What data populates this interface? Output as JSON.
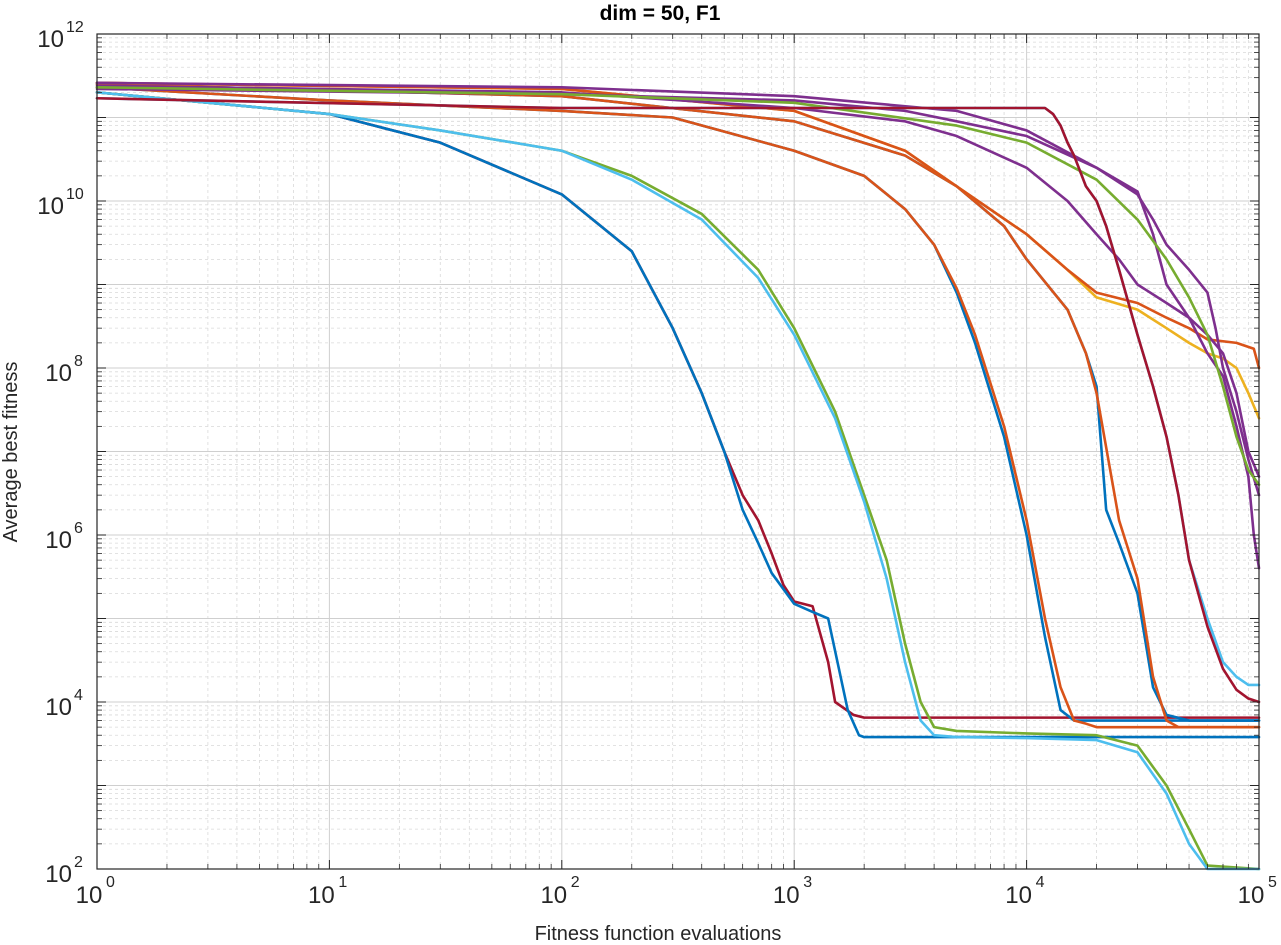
{
  "chart_data": {
    "type": "line",
    "title": "dim = 50,  F1",
    "xlabel": "Fitness function evaluations",
    "ylabel": "Average best fitness",
    "xscale": "log",
    "yscale": "log",
    "xlim": [
      1,
      100000
    ],
    "ylim": [
      100,
      1000000000000
    ],
    "grid": true,
    "minor_grid": true,
    "x_ticks": [
      {
        "base": "10",
        "exp": "0",
        "value": 1
      },
      {
        "base": "10",
        "exp": "1",
        "value": 10
      },
      {
        "base": "10",
        "exp": "2",
        "value": 100
      },
      {
        "base": "10",
        "exp": "3",
        "value": 1000
      },
      {
        "base": "10",
        "exp": "4",
        "value": 10000
      },
      {
        "base": "10",
        "exp": "5",
        "value": 100000
      }
    ],
    "y_ticks": [
      {
        "base": "10",
        "exp": "2",
        "value": 100
      },
      {
        "base": "10",
        "exp": "4",
        "value": 10000
      },
      {
        "base": "10",
        "exp": "6",
        "value": 1000000
      },
      {
        "base": "10",
        "exp": "8",
        "value": 100000000
      },
      {
        "base": "10",
        "exp": "10",
        "value": 10000000000
      },
      {
        "base": "10",
        "exp": "12",
        "value": 1000000000000
      }
    ],
    "series": [
      {
        "color": "#A2142F",
        "x": [
          1,
          10,
          30,
          100,
          200,
          300,
          400,
          500,
          600,
          700,
          800,
          900,
          1000,
          1200,
          1400,
          1500,
          1800,
          2000,
          10000,
          100000
        ],
        "y": [
          200000000000.0,
          110000000000.0,
          50000000000.0,
          12000000000.0,
          2500000000.0,
          300000000.0,
          50000000.0,
          10000000.0,
          3000000.0,
          1500000.0,
          600000.0,
          250000.0,
          160000.0,
          140000.0,
          30000.0,
          10000.0,
          7000,
          6500,
          6500,
          6500
        ]
      },
      {
        "color": "#0072BD",
        "x": [
          1,
          10,
          30,
          100,
          200,
          300,
          400,
          500,
          600,
          700,
          800,
          1000,
          1200,
          1400,
          1700,
          1900,
          2000,
          10000,
          100000
        ],
        "y": [
          200000000000.0,
          110000000000.0,
          50000000000.0,
          12000000000.0,
          2500000000.0,
          300000000.0,
          50000000.0,
          10000000.0,
          2000000.0,
          800000.0,
          350000.0,
          150000.0,
          120000.0,
          100000.0,
          8000,
          4000,
          3800,
          3800,
          3800
        ]
      },
      {
        "color": "#77AC30",
        "x": [
          1,
          10,
          30,
          100,
          200,
          400,
          700,
          1000,
          1500,
          2000,
          2500,
          3000,
          3500,
          4000,
          5000,
          10000,
          20000,
          30000,
          40000,
          50000,
          60000,
          100000
        ],
        "y": [
          200000000000.0,
          110000000000.0,
          70000000000.0,
          40000000000.0,
          20000000000.0,
          7000000000.0,
          1500000000.0,
          300000000.0,
          30000000.0,
          3000000.0,
          500000.0,
          50000.0,
          10000.0,
          5000,
          4500,
          4200,
          4000,
          3000,
          1000,
          300,
          110,
          100
        ]
      },
      {
        "color": "#4DBEEE",
        "x": [
          1,
          10,
          30,
          100,
          200,
          400,
          700,
          1000,
          1500,
          2000,
          2500,
          3000,
          3500,
          4000,
          5000,
          10000,
          20000,
          30000,
          40000,
          50000,
          60000,
          100000
        ],
        "y": [
          200000000000.0,
          110000000000.0,
          70000000000.0,
          40000000000.0,
          18000000000.0,
          6000000000.0,
          1200000000.0,
          250000000.0,
          25000000.0,
          2500000.0,
          300000.0,
          30000.0,
          6000,
          4000,
          3800,
          3700,
          3500,
          2500,
          800,
          200,
          100,
          100
        ]
      },
      {
        "color": "#0072BD",
        "x": [
          1,
          10,
          100,
          300,
          1000,
          2000,
          3000,
          4000,
          5000,
          6000,
          8000,
          10000,
          12000,
          14000,
          16000,
          20000,
          100000
        ],
        "y": [
          230000000000.0,
          160000000000.0,
          120000000000.0,
          100000000000.0,
          40000000000.0,
          20000000000.0,
          8000000000.0,
          3000000000.0,
          800000000.0,
          200000000.0,
          15000000.0,
          1000000.0,
          60000.0,
          8000,
          6000,
          6000,
          6000
        ]
      },
      {
        "color": "#D95319",
        "x": [
          1,
          10,
          100,
          300,
          1000,
          2000,
          3000,
          4000,
          5000,
          6000,
          8000,
          10000,
          12000,
          14000,
          16000,
          18000,
          20000,
          100000
        ],
        "y": [
          230000000000.0,
          160000000000.0,
          120000000000.0,
          100000000000.0,
          40000000000.0,
          20000000000.0,
          8000000000.0,
          3000000000.0,
          900000000.0,
          250000000.0,
          20000000.0,
          1500000.0,
          100000.0,
          15000.0,
          6000,
          5500,
          5000,
          5000
        ]
      },
      {
        "color": "#0072BD",
        "x": [
          1,
          100,
          1000,
          3000,
          5000,
          8000,
          10000,
          15000,
          18000,
          20000,
          22000,
          25000,
          30000,
          35000,
          40000,
          50000,
          100000
        ],
        "y": [
          250000000000.0,
          180000000000.0,
          90000000000.0,
          35000000000.0,
          15000000000.0,
          5000000000.0,
          2000000000.0,
          500000000.0,
          150000000.0,
          60000000.0,
          2000000.0,
          800000.0,
          200000.0,
          15000.0,
          7000,
          6000,
          6000
        ]
      },
      {
        "color": "#D95319",
        "x": [
          1,
          100,
          1000,
          3000,
          5000,
          8000,
          10000,
          15000,
          18000,
          20000,
          25000,
          30000,
          35000,
          40000,
          45000,
          50000,
          100000
        ],
        "y": [
          250000000000.0,
          180000000000.0,
          90000000000.0,
          35000000000.0,
          15000000000.0,
          5000000000.0,
          2000000000.0,
          500000000.0,
          150000000.0,
          50000000.0,
          1500000.0,
          300000.0,
          20000.0,
          6000,
          5000,
          5000,
          5000
        ]
      },
      {
        "color": "#EDB120",
        "x": [
          1,
          100,
          1000,
          3000,
          5000,
          10000,
          15000,
          20000,
          30000,
          40000,
          50000,
          60000,
          70000,
          80000,
          90000,
          100000
        ],
        "y": [
          260000000000.0,
          220000000000.0,
          120000000000.0,
          40000000000.0,
          15000000000.0,
          4000000000.0,
          1500000000.0,
          700000000.0,
          500000000.0,
          300000000.0,
          200000000.0,
          150000000.0,
          130000000.0,
          100000000.0,
          50000000.0,
          25000000.0
        ]
      },
      {
        "color": "#D95319",
        "x": [
          1,
          100,
          1000,
          3000,
          5000,
          10000,
          15000,
          20000,
          30000,
          40000,
          50000,
          60000,
          80000,
          95000,
          100000
        ],
        "y": [
          260000000000.0,
          220000000000.0,
          120000000000.0,
          40000000000.0,
          15000000000.0,
          4000000000.0,
          1500000000.0,
          800000000.0,
          600000000.0,
          400000000.0,
          300000000.0,
          220000000.0,
          200000000.0,
          170000000.0,
          100000000.0
        ]
      },
      {
        "color": "#7E2F8E",
        "x": [
          1,
          100,
          1000,
          3000,
          5000,
          10000,
          15000,
          20000,
          25000,
          30000,
          40000,
          50000,
          60000,
          70000,
          80000,
          90000,
          100000
        ],
        "y": [
          240000000000.0,
          200000000000.0,
          130000000000.0,
          90000000000.0,
          60000000000.0,
          25000000000.0,
          10000000000.0,
          4000000000.0,
          2000000000.0,
          1000000000.0,
          600000000.0,
          400000000.0,
          250000000.0,
          150000000.0,
          50000000.0,
          10000000.0,
          5000000.0
        ]
      },
      {
        "color": "#7E2F8E",
        "x": [
          1,
          100,
          1000,
          3000,
          5000,
          10000,
          20000,
          30000,
          35000,
          40000,
          50000,
          60000,
          70000,
          80000,
          90000,
          95000,
          100000
        ],
        "y": [
          220000000000.0,
          190000000000.0,
          160000000000.0,
          120000000000.0,
          90000000000.0,
          60000000000.0,
          25000000000.0,
          13000000000.0,
          4000000000.0,
          1000000000.0,
          400000000.0,
          150000000.0,
          80000000.0,
          20000000.0,
          5000000.0,
          1000000.0,
          400000.0
        ]
      },
      {
        "color": "#7E2F8E",
        "x": [
          1,
          100,
          1000,
          5000,
          10000,
          20000,
          30000,
          35000,
          40000,
          50000,
          60000,
          65000,
          70000,
          80000,
          90000,
          100000
        ],
        "y": [
          260000000000.0,
          230000000000.0,
          180000000000.0,
          120000000000.0,
          70000000000.0,
          25000000000.0,
          12000000000.0,
          6000000000.0,
          3000000000.0,
          1500000000.0,
          800000000.0,
          300000000.0,
          100000000.0,
          30000000.0,
          8000000.0,
          3000000.0
        ]
      },
      {
        "color": "#77AC30",
        "x": [
          1,
          100,
          1000,
          5000,
          10000,
          20000,
          30000,
          40000,
          50000,
          60000,
          70000,
          80000,
          90000,
          100000
        ],
        "y": [
          230000000000.0,
          190000000000.0,
          150000000000.0,
          80000000000.0,
          50000000000.0,
          18000000000.0,
          6000000000.0,
          2000000000.0,
          700000000.0,
          250000000.0,
          60000000.0,
          15000000.0,
          6000000.0,
          4000000.0
        ]
      },
      {
        "color": "#4DBEEE",
        "x": [
          1,
          100,
          1000,
          5000,
          10000,
          12000,
          13000,
          14000,
          15000,
          16000,
          18000,
          20000,
          22000,
          25000,
          30000,
          35000,
          40000,
          45000,
          50000,
          60000,
          70000,
          80000,
          90000,
          100000
        ],
        "y": [
          170000000000.0,
          130000000000.0,
          130000000000.0,
          130000000000.0,
          130000000000.0,
          130000000000.0,
          110000000000.0,
          80000000000.0,
          50000000000.0,
          35000000000.0,
          15000000000.0,
          10000000000.0,
          5000000000.0,
          1500000000.0,
          250000000.0,
          60000000.0,
          15000000.0,
          3000000.0,
          500000.0,
          100000.0,
          30000.0,
          20000.0,
          16000.0,
          16000.0
        ]
      },
      {
        "color": "#A2142F",
        "x": [
          1,
          100,
          1000,
          5000,
          10000,
          12000,
          13000,
          14000,
          15000,
          16000,
          18000,
          20000,
          22000,
          25000,
          30000,
          35000,
          40000,
          45000,
          50000,
          60000,
          70000,
          80000,
          90000,
          100000
        ],
        "y": [
          170000000000.0,
          130000000000.0,
          130000000000.0,
          130000000000.0,
          130000000000.0,
          130000000000.0,
          110000000000.0,
          80000000000.0,
          50000000000.0,
          35000000000.0,
          15000000000.0,
          10000000000.0,
          5000000000.0,
          1500000000.0,
          250000000.0,
          60000000.0,
          15000000.0,
          3000000.0,
          500000.0,
          80000.0,
          25000.0,
          14000.0,
          11000.0,
          10000.0
        ]
      }
    ]
  }
}
